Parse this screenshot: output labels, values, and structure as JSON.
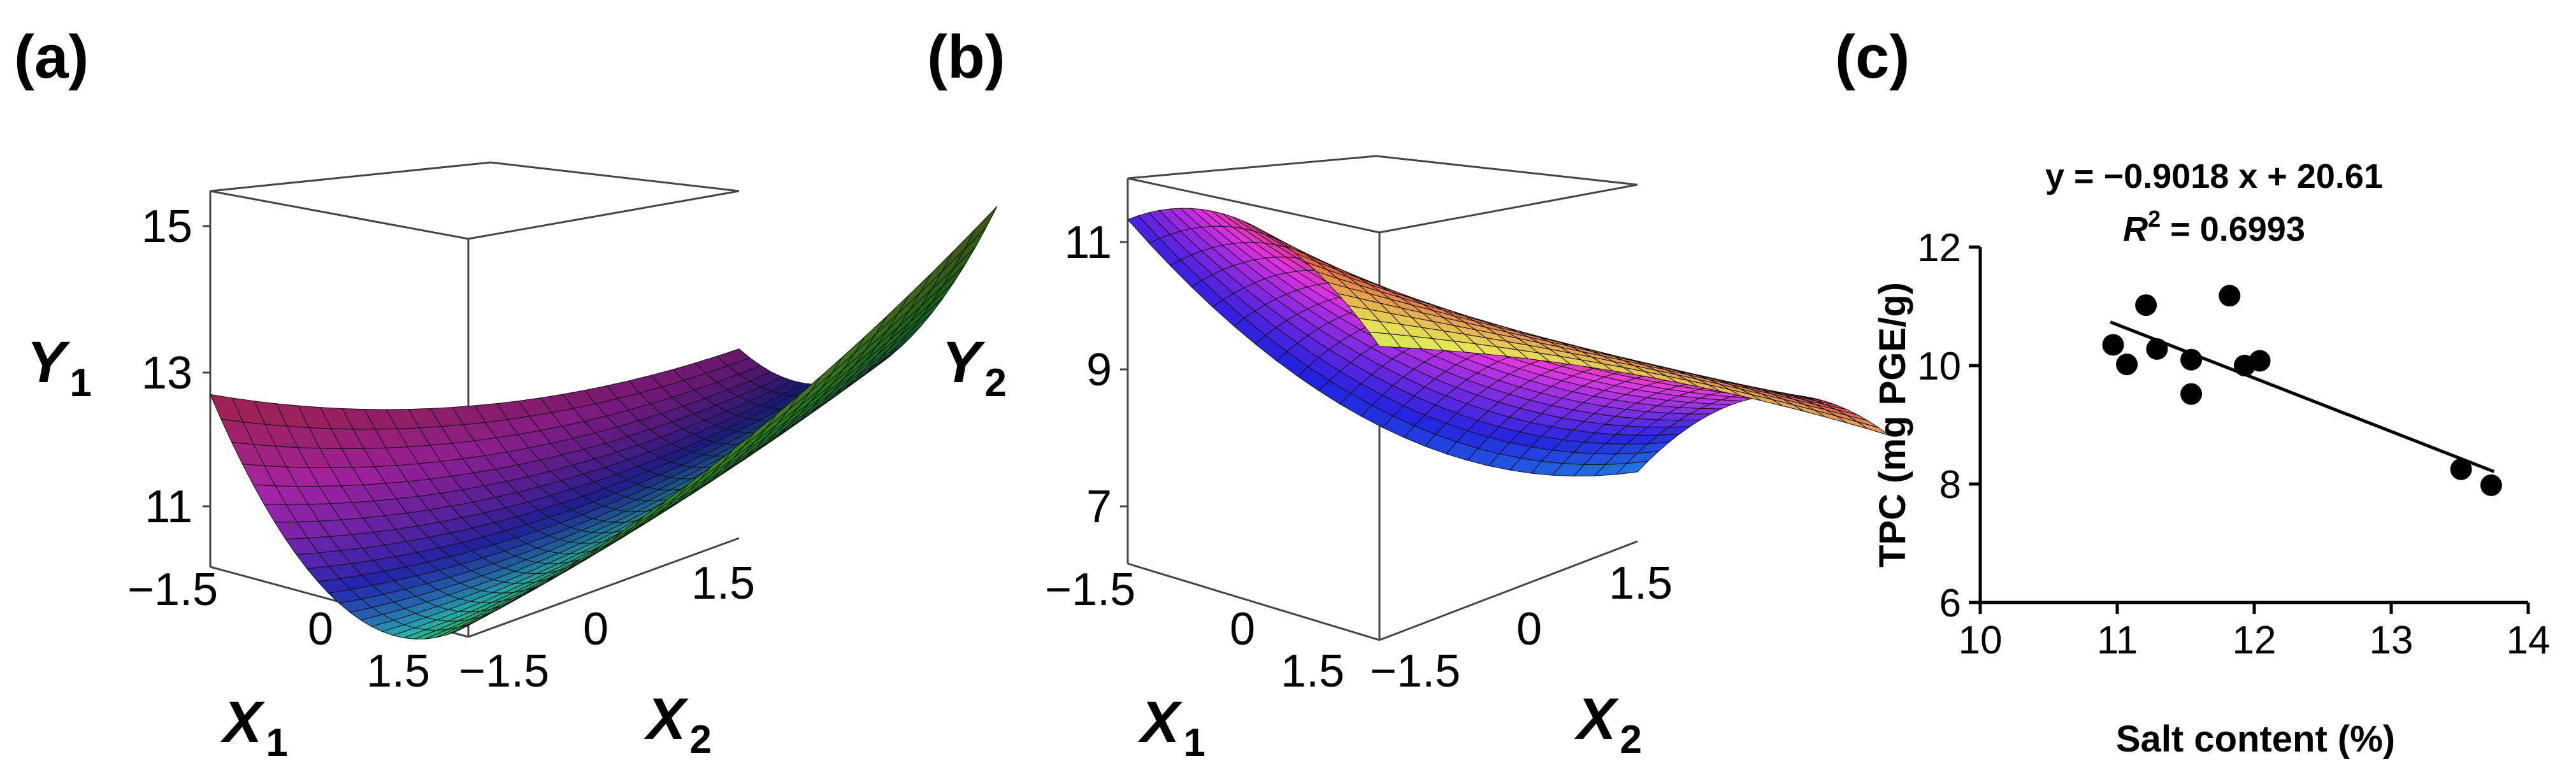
{
  "panels": {
    "a": "(a)",
    "b": "(b)",
    "c": "(c)"
  },
  "surface_a": {
    "x1_ticks": [
      "−1.5",
      "0",
      "1.5"
    ],
    "x2_ticks": [
      "−1.5",
      "0",
      "1.5"
    ],
    "y_ticks": [
      "11",
      "13",
      "15"
    ],
    "x1_label": "X",
    "x1_sub": "1",
    "x2_label": "X",
    "x2_sub": "2",
    "y_label": "Y",
    "y_sub": "1"
  },
  "surface_b": {
    "x1_ticks": [
      "−1.5",
      "0",
      "1.5"
    ],
    "x2_ticks": [
      "−1.5",
      "0",
      "1.5"
    ],
    "y_ticks": [
      "7",
      "9",
      "11"
    ],
    "x1_label": "X",
    "x1_sub": "1",
    "x2_label": "X",
    "x2_sub": "2",
    "y_label": "Y",
    "y_sub": "2"
  },
  "chart_data": {
    "type": "scatter",
    "xlabel": "Salt content (%)",
    "ylabel": "TPC (mg PGE/g)",
    "xlim": [
      10,
      14
    ],
    "ylim": [
      6,
      12
    ],
    "x_ticks": [
      "10",
      "11",
      "12",
      "13",
      "14"
    ],
    "y_ticks": [
      "6",
      "8",
      "10",
      "12"
    ],
    "equation": "y = −0.9018 x + 20.61",
    "r2_label": "R",
    "r2_sup": "2",
    "r2_value": " = 0.6993",
    "fit": {
      "slope": -0.9018,
      "intercept": 20.61,
      "x_range": [
        10.95,
        13.75
      ]
    },
    "points": [
      {
        "x": 10.97,
        "y": 10.35
      },
      {
        "x": 11.07,
        "y": 10.02
      },
      {
        "x": 11.21,
        "y": 11.02
      },
      {
        "x": 11.29,
        "y": 10.28
      },
      {
        "x": 11.54,
        "y": 10.1
      },
      {
        "x": 11.54,
        "y": 9.52
      },
      {
        "x": 11.82,
        "y": 11.18
      },
      {
        "x": 11.93,
        "y": 10.0
      },
      {
        "x": 12.04,
        "y": 10.08
      },
      {
        "x": 13.51,
        "y": 8.25
      },
      {
        "x": 13.73,
        "y": 7.98
      }
    ]
  }
}
